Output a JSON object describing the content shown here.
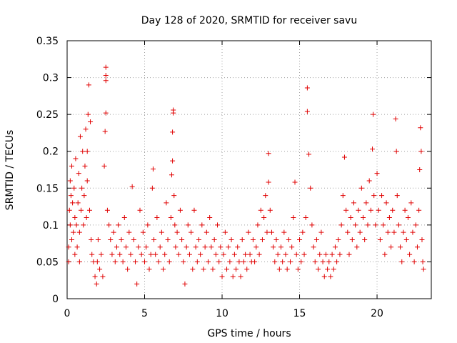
{
  "chart_data": {
    "type": "scatter",
    "title": "Day 128 of 2020, SRMTID for receiver savu",
    "xlabel": "GPS time / hours",
    "ylabel": "SRMTID / TECUs",
    "xlim": [
      0,
      23.5
    ],
    "ylim": [
      0,
      0.35
    ],
    "xticks": [
      0,
      5,
      10,
      15,
      20
    ],
    "xtick_labels": [
      "0",
      "5",
      "10",
      "15",
      "20"
    ],
    "yticks": [
      0,
      0.05,
      0.1,
      0.15,
      0.2,
      0.25,
      0.3,
      0.35
    ],
    "ytick_labels": [
      "0",
      "0.05",
      "0.1",
      "0.15",
      "0.2",
      "0.25",
      "0.3",
      "0.35"
    ],
    "grid": true,
    "marker": "plus",
    "color": "#e00000",
    "series": [
      {
        "name": "SRMTID",
        "points": [
          [
            0.1,
            0.07
          ],
          [
            0.1,
            0.05
          ],
          [
            0.15,
            0.12
          ],
          [
            0.2,
            0.16
          ],
          [
            0.2,
            0.1
          ],
          [
            0.25,
            0.14
          ],
          [
            0.3,
            0.08
          ],
          [
            0.3,
            0.18
          ],
          [
            0.35,
            0.13
          ],
          [
            0.4,
            0.09
          ],
          [
            0.45,
            0.15
          ],
          [
            0.5,
            0.11
          ],
          [
            0.5,
            0.06
          ],
          [
            0.55,
            0.19
          ],
          [
            0.6,
            0.1
          ],
          [
            0.65,
            0.07
          ],
          [
            0.7,
            0.13
          ],
          [
            0.75,
            0.17
          ],
          [
            0.8,
            0.09
          ],
          [
            0.8,
            0.05
          ],
          [
            0.85,
            0.22
          ],
          [
            0.9,
            0.12
          ],
          [
            0.95,
            0.15
          ],
          [
            1.0,
            0.2
          ],
          [
            1.05,
            0.1
          ],
          [
            1.1,
            0.14
          ],
          [
            1.15,
            0.18
          ],
          [
            1.2,
            0.23
          ],
          [
            1.25,
            0.11
          ],
          [
            1.3,
            0.16
          ],
          [
            1.3,
            0.2
          ],
          [
            1.35,
            0.25
          ],
          [
            1.4,
            0.29
          ],
          [
            1.45,
            0.12
          ],
          [
            1.5,
            0.24
          ],
          [
            1.55,
            0.08
          ],
          [
            1.6,
            0.06
          ],
          [
            1.7,
            0.05
          ],
          [
            1.8,
            0.03
          ],
          [
            1.9,
            0.02
          ],
          [
            1.95,
            0.05
          ],
          [
            2.0,
            0.08
          ],
          [
            2.1,
            0.04
          ],
          [
            2.2,
            0.06
          ],
          [
            2.3,
            0.03
          ],
          [
            2.4,
            0.18
          ],
          [
            2.45,
            0.227
          ],
          [
            2.5,
            0.252
          ],
          [
            2.5,
            0.296
          ],
          [
            2.5,
            0.303
          ],
          [
            2.5,
            0.314
          ],
          [
            2.6,
            0.12
          ],
          [
            2.7,
            0.1
          ],
          [
            2.8,
            0.08
          ],
          [
            2.9,
            0.06
          ],
          [
            3.0,
            0.09
          ],
          [
            3.1,
            0.05
          ],
          [
            3.2,
            0.07
          ],
          [
            3.3,
            0.1
          ],
          [
            3.4,
            0.06
          ],
          [
            3.5,
            0.08
          ],
          [
            3.6,
            0.05
          ],
          [
            3.7,
            0.11
          ],
          [
            3.8,
            0.07
          ],
          [
            3.9,
            0.04
          ],
          [
            4.0,
            0.09
          ],
          [
            4.1,
            0.06
          ],
          [
            4.2,
            0.152
          ],
          [
            4.3,
            0.08
          ],
          [
            4.4,
            0.05
          ],
          [
            4.5,
            0.02
          ],
          [
            4.6,
            0.07
          ],
          [
            4.7,
            0.12
          ],
          [
            4.8,
            0.06
          ],
          [
            4.9,
            0.09
          ],
          [
            5.0,
            0.05
          ],
          [
            5.1,
            0.07
          ],
          [
            5.2,
            0.1
          ],
          [
            5.3,
            0.04
          ],
          [
            5.4,
            0.06
          ],
          [
            5.5,
            0.15
          ],
          [
            5.55,
            0.176
          ],
          [
            5.6,
            0.08
          ],
          [
            5.7,
            0.06
          ],
          [
            5.8,
            0.11
          ],
          [
            5.9,
            0.05
          ],
          [
            6.0,
            0.07
          ],
          [
            6.1,
            0.09
          ],
          [
            6.2,
            0.04
          ],
          [
            6.3,
            0.06
          ],
          [
            6.4,
            0.13
          ],
          [
            6.5,
            0.08
          ],
          [
            6.6,
            0.05
          ],
          [
            6.7,
            0.11
          ],
          [
            6.75,
            0.168
          ],
          [
            6.8,
            0.187
          ],
          [
            6.8,
            0.226
          ],
          [
            6.85,
            0.252
          ],
          [
            6.85,
            0.256
          ],
          [
            6.9,
            0.14
          ],
          [
            6.95,
            0.1
          ],
          [
            7.0,
            0.07
          ],
          [
            7.1,
            0.09
          ],
          [
            7.2,
            0.06
          ],
          [
            7.3,
            0.12
          ],
          [
            7.4,
            0.08
          ],
          [
            7.5,
            0.05
          ],
          [
            7.6,
            0.02
          ],
          [
            7.7,
            0.07
          ],
          [
            7.8,
            0.1
          ],
          [
            7.9,
            0.06
          ],
          [
            8.0,
            0.09
          ],
          [
            8.1,
            0.04
          ],
          [
            8.2,
            0.12
          ],
          [
            8.3,
            0.07
          ],
          [
            8.4,
            0.05
          ],
          [
            8.5,
            0.08
          ],
          [
            8.6,
            0.06
          ],
          [
            8.7,
            0.1
          ],
          [
            8.8,
            0.04
          ],
          [
            8.9,
            0.07
          ],
          [
            9.0,
            0.09
          ],
          [
            9.1,
            0.05
          ],
          [
            9.2,
            0.11
          ],
          [
            9.3,
            0.07
          ],
          [
            9.4,
            0.04
          ],
          [
            9.5,
            0.08
          ],
          [
            9.6,
            0.06
          ],
          [
            9.7,
            0.1
          ],
          [
            9.8,
            0.05
          ],
          [
            9.9,
            0.07
          ],
          [
            10.0,
            0.03
          ],
          [
            10.1,
            0.06
          ],
          [
            10.2,
            0.09
          ],
          [
            10.3,
            0.04
          ],
          [
            10.4,
            0.07
          ],
          [
            10.5,
            0.05
          ],
          [
            10.6,
            0.08
          ],
          [
            10.7,
            0.03
          ],
          [
            10.8,
            0.06
          ],
          [
            10.9,
            0.04
          ],
          [
            11.0,
            0.07
          ],
          [
            11.1,
            0.05
          ],
          [
            11.2,
            0.03
          ],
          [
            11.3,
            0.08
          ],
          [
            11.4,
            0.05
          ],
          [
            11.5,
            0.06
          ],
          [
            11.6,
            0.04
          ],
          [
            11.7,
            0.09
          ],
          [
            11.8,
            0.06
          ],
          [
            11.9,
            0.05
          ],
          [
            12.0,
            0.08
          ],
          [
            12.1,
            0.05
          ],
          [
            12.2,
            0.07
          ],
          [
            12.3,
            0.1
          ],
          [
            12.4,
            0.06
          ],
          [
            12.5,
            0.12
          ],
          [
            12.6,
            0.08
          ],
          [
            12.7,
            0.11
          ],
          [
            12.8,
            0.14
          ],
          [
            12.9,
            0.09
          ],
          [
            13.0,
            0.158
          ],
          [
            13.0,
            0.197
          ],
          [
            13.1,
            0.12
          ],
          [
            13.2,
            0.09
          ],
          [
            13.3,
            0.07
          ],
          [
            13.4,
            0.05
          ],
          [
            13.5,
            0.08
          ],
          [
            13.6,
            0.06
          ],
          [
            13.7,
            0.04
          ],
          [
            13.8,
            0.07
          ],
          [
            13.9,
            0.05
          ],
          [
            14.0,
            0.09
          ],
          [
            14.1,
            0.06
          ],
          [
            14.2,
            0.04
          ],
          [
            14.3,
            0.08
          ],
          [
            14.4,
            0.05
          ],
          [
            14.5,
            0.07
          ],
          [
            14.6,
            0.11
          ],
          [
            14.7,
            0.158
          ],
          [
            14.8,
            0.06
          ],
          [
            14.9,
            0.04
          ],
          [
            15.0,
            0.08
          ],
          [
            15.1,
            0.05
          ],
          [
            15.2,
            0.09
          ],
          [
            15.3,
            0.06
          ],
          [
            15.4,
            0.11
          ],
          [
            15.5,
            0.254
          ],
          [
            15.5,
            0.286
          ],
          [
            15.6,
            0.196
          ],
          [
            15.7,
            0.15
          ],
          [
            15.8,
            0.1
          ],
          [
            15.9,
            0.07
          ],
          [
            16.0,
            0.05
          ],
          [
            16.1,
            0.08
          ],
          [
            16.2,
            0.04
          ],
          [
            16.3,
            0.06
          ],
          [
            16.4,
            0.09
          ],
          [
            16.5,
            0.05
          ],
          [
            16.6,
            0.03
          ],
          [
            16.7,
            0.06
          ],
          [
            16.8,
            0.04
          ],
          [
            16.9,
            0.05
          ],
          [
            17.0,
            0.03
          ],
          [
            17.1,
            0.06
          ],
          [
            17.2,
            0.04
          ],
          [
            17.3,
            0.07
          ],
          [
            17.4,
            0.05
          ],
          [
            17.5,
            0.08
          ],
          [
            17.6,
            0.06
          ],
          [
            17.7,
            0.1
          ],
          [
            17.8,
            0.14
          ],
          [
            17.9,
            0.192
          ],
          [
            18.0,
            0.12
          ],
          [
            18.1,
            0.09
          ],
          [
            18.2,
            0.06
          ],
          [
            18.3,
            0.11
          ],
          [
            18.4,
            0.08
          ],
          [
            18.5,
            0.13
          ],
          [
            18.6,
            0.1
          ],
          [
            18.7,
            0.07
          ],
          [
            18.8,
            0.12
          ],
          [
            18.9,
            0.09
          ],
          [
            19.0,
            0.15
          ],
          [
            19.1,
            0.11
          ],
          [
            19.2,
            0.08
          ],
          [
            19.3,
            0.13
          ],
          [
            19.4,
            0.1
          ],
          [
            19.5,
            0.16
          ],
          [
            19.6,
            0.12
          ],
          [
            19.7,
            0.203
          ],
          [
            19.75,
            0.25
          ],
          [
            19.8,
            0.14
          ],
          [
            19.9,
            0.1
          ],
          [
            20.0,
            0.17
          ],
          [
            20.1,
            0.12
          ],
          [
            20.2,
            0.08
          ],
          [
            20.3,
            0.14
          ],
          [
            20.4,
            0.1
          ],
          [
            20.5,
            0.06
          ],
          [
            20.6,
            0.13
          ],
          [
            20.7,
            0.09
          ],
          [
            20.8,
            0.11
          ],
          [
            20.9,
            0.07
          ],
          [
            21.0,
            0.12
          ],
          [
            21.1,
            0.09
          ],
          [
            21.2,
            0.244
          ],
          [
            21.25,
            0.2
          ],
          [
            21.3,
            0.14
          ],
          [
            21.4,
            0.1
          ],
          [
            21.5,
            0.07
          ],
          [
            21.6,
            0.05
          ],
          [
            21.7,
            0.09
          ],
          [
            21.8,
            0.12
          ],
          [
            21.9,
            0.08
          ],
          [
            22.0,
            0.11
          ],
          [
            22.1,
            0.06
          ],
          [
            22.2,
            0.13
          ],
          [
            22.3,
            0.09
          ],
          [
            22.4,
            0.05
          ],
          [
            22.5,
            0.1
          ],
          [
            22.6,
            0.07
          ],
          [
            22.7,
            0.12
          ],
          [
            22.75,
            0.175
          ],
          [
            22.8,
            0.232
          ],
          [
            22.85,
            0.2
          ],
          [
            22.9,
            0.08
          ],
          [
            22.95,
            0.05
          ],
          [
            23.0,
            0.04
          ]
        ]
      }
    ]
  }
}
